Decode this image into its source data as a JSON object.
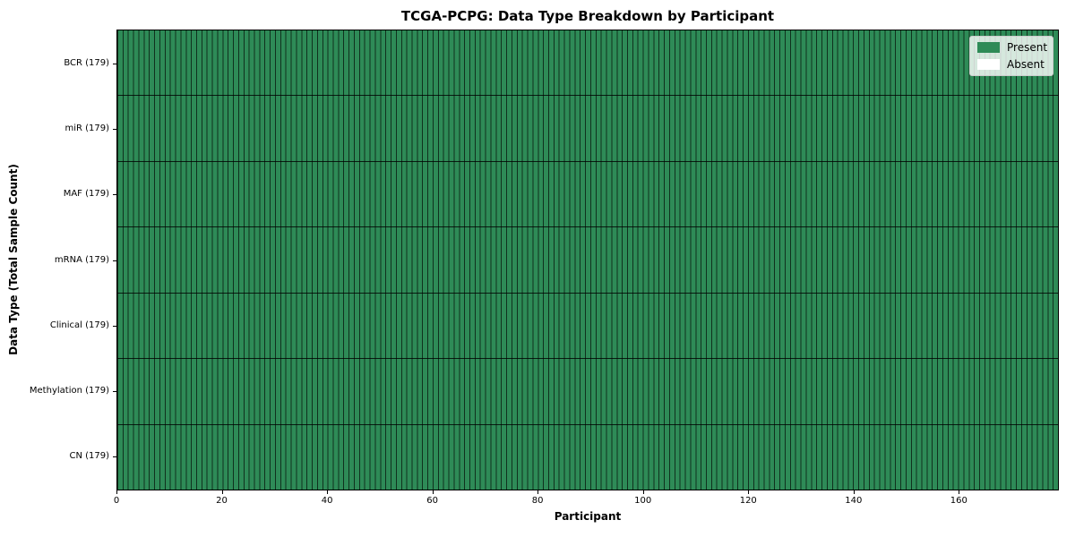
{
  "chart_data": {
    "type": "heatmap",
    "title": "TCGA-PCPG: Data Type Breakdown by Participant",
    "xlabel": "Participant",
    "ylabel": "Data Type (Total Sample Count)",
    "x_range": [
      0,
      179
    ],
    "x_ticks": [
      0,
      20,
      40,
      60,
      80,
      100,
      120,
      140,
      160
    ],
    "n_participants": 179,
    "grid": "cell-borders",
    "legend_position": "upper right",
    "rows": [
      {
        "label": "BCR (179)",
        "data_type": "BCR",
        "total_samples": 179,
        "present_count": 179,
        "absent_count": 0
      },
      {
        "label": "miR (179)",
        "data_type": "miR",
        "total_samples": 179,
        "present_count": 179,
        "absent_count": 0
      },
      {
        "label": "MAF (179)",
        "data_type": "MAF",
        "total_samples": 179,
        "present_count": 179,
        "absent_count": 0
      },
      {
        "label": "mRNA (179)",
        "data_type": "mRNA",
        "total_samples": 179,
        "present_count": 179,
        "absent_count": 0
      },
      {
        "label": "Clinical (179)",
        "data_type": "Clinical",
        "total_samples": 179,
        "present_count": 179,
        "absent_count": 0
      },
      {
        "label": "Methylation (179)",
        "data_type": "Methylation",
        "total_samples": 179,
        "present_count": 179,
        "absent_count": 0
      },
      {
        "label": "CN (179)",
        "data_type": "CN",
        "total_samples": 179,
        "present_count": 179,
        "absent_count": 0
      }
    ],
    "legend": {
      "entries": [
        {
          "label": "Present",
          "color": "#2e8b57"
        },
        {
          "label": "Absent",
          "color": "#ffffff"
        }
      ]
    },
    "colors": {
      "present": "#2e8b57",
      "absent": "#ffffff",
      "cell_border": "rgba(0,0,0,0.65)",
      "row_separator": "rgba(0,0,0,0.8)"
    }
  }
}
